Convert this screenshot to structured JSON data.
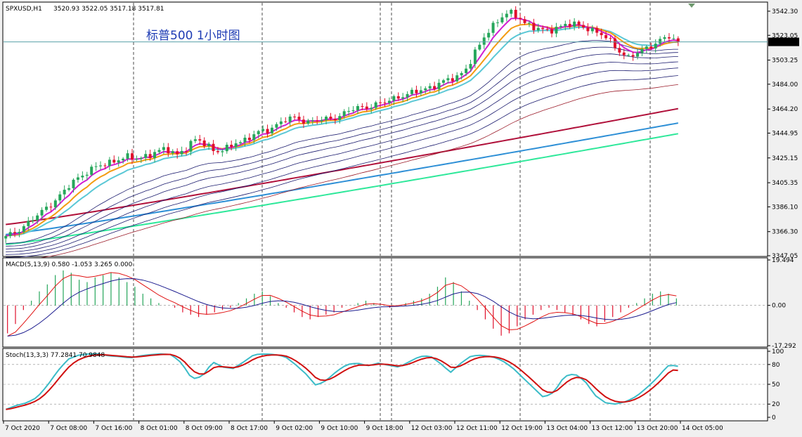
{
  "header": {
    "symbol": "SPXUSD,H1",
    "ohlc": "3520.93 3522.05 3517.18 3517.81",
    "overlay_title": "标普500  1小时图",
    "current_price": "3517.81"
  },
  "colors": {
    "background": "#ffffff",
    "frame": "#f0f0f0",
    "bull_candle": "#26a65b",
    "bear_candle": "#e0102c",
    "ma_fast": "#d11ed1",
    "ma_mid": "#f39c12",
    "ma_slow": "#5bc8d6",
    "ribbon": "#1b1b6e",
    "ribbon_outer": "#9b1c2a",
    "long_ma_1": "#b0103a",
    "long_ma_2": "#2d8fd6",
    "long_ma_3": "#2ee89a",
    "macd_line": "#1b1b8e",
    "signal_line": "#e01010",
    "stoch_main": "#3cbcc8",
    "stoch_signal": "#d01010",
    "current_price_line": "#5aa0a8"
  },
  "chart_data": [
    {
      "type": "candlestick",
      "panel": "price",
      "y_ticks": [
        "3542.30",
        "3523.05",
        "3503.25",
        "3484.00",
        "3464.20",
        "3444.95",
        "3425.15",
        "3405.35",
        "3386.10",
        "3366.30",
        "3347.05"
      ],
      "ylim": [
        3347.05,
        3549
      ],
      "x_ticks": [
        "7 Oct 2020",
        "7 Oct 08:00",
        "7 Oct 16:00",
        "8 Oct 01:00",
        "8 Oct 09:00",
        "8 Oct 17:00",
        "9 Oct 02:00",
        "9 Oct 10:00",
        "9 Oct 18:00",
        "12 Oct 03:00",
        "12 Oct 11:00",
        "12 Oct 19:00",
        "13 Oct 04:00",
        "13 Oct 12:00",
        "13 Oct 20:00",
        "14 Oct 05:00"
      ],
      "close_path": [
        3362,
        3366,
        3372,
        3378,
        3385,
        3392,
        3400,
        3408,
        3414,
        3418,
        3420,
        3424,
        3426,
        3424,
        3427,
        3430,
        3432,
        3428,
        3433,
        3440,
        3436,
        3430,
        3432,
        3438,
        3440,
        3445,
        3447,
        3452,
        3456,
        3457,
        3454,
        3455,
        3456,
        3458,
        3462,
        3465,
        3466,
        3468,
        3470,
        3474,
        3476,
        3478,
        3481,
        3484,
        3487,
        3490,
        3498,
        3512,
        3526,
        3535,
        3541,
        3538,
        3532,
        3528,
        3526,
        3530,
        3532,
        3531,
        3529,
        3525,
        3520,
        3512,
        3505,
        3509,
        3514,
        3518,
        3522,
        3518
      ],
      "series_names": [],
      "last_value": 3517.81
    },
    {
      "type": "line",
      "panel": "macd",
      "label": "MACD(5,13,9) 0.580 -1.053 3.265 0.000",
      "y_ticks": [
        "19.494",
        "0.00",
        "-17.292"
      ],
      "ylim": [
        -17.292,
        19.494
      ],
      "macd": 0.58,
      "signal": -1.053,
      "histogram": [
        -12,
        -8,
        -2,
        2,
        6,
        9,
        13,
        15,
        14,
        11,
        10,
        12,
        13,
        14,
        12,
        10,
        8,
        5,
        3,
        1,
        0,
        -1,
        -3,
        -4,
        -5,
        -4,
        -3,
        -2,
        -1,
        1,
        3,
        5,
        6,
        4,
        1,
        -1,
        -3,
        -5,
        -6,
        -5,
        -4,
        -3,
        -1,
        0,
        1,
        2,
        1,
        0,
        -1,
        0,
        1,
        2,
        3,
        5,
        8,
        12,
        10,
        6,
        2,
        -2,
        -6,
        -10,
        -13,
        -12,
        -9,
        -6,
        -4,
        -2,
        -1,
        -2,
        -3,
        -4,
        -6,
        -8,
        -9,
        -7,
        -5,
        -3,
        -1,
        1,
        3,
        5,
        6,
        5,
        3
      ]
    },
    {
      "type": "line",
      "panel": "stochastic",
      "label": "Stoch(13,3,3) 77.2841 70.9848",
      "y_ticks": [
        "100",
        "80",
        "50",
        "20",
        "0"
      ],
      "ylim": [
        0,
        100
      ],
      "main": 77.2841,
      "signal": 70.9848,
      "main_path": [
        12,
        18,
        22,
        30,
        48,
        70,
        88,
        94,
        96,
        96,
        93,
        92,
        90,
        93,
        95,
        96,
        95,
        82,
        58,
        62,
        84,
        76,
        74,
        84,
        95,
        96,
        95,
        92,
        80,
        66,
        48,
        56,
        70,
        80,
        82,
        78,
        82,
        79,
        76,
        84,
        92,
        93,
        82,
        68,
        82,
        93,
        94,
        92,
        86,
        75,
        60,
        45,
        30,
        38,
        62,
        66,
        55,
        33,
        22,
        20,
        24,
        32,
        45,
        60,
        78,
        79
      ]
    }
  ]
}
